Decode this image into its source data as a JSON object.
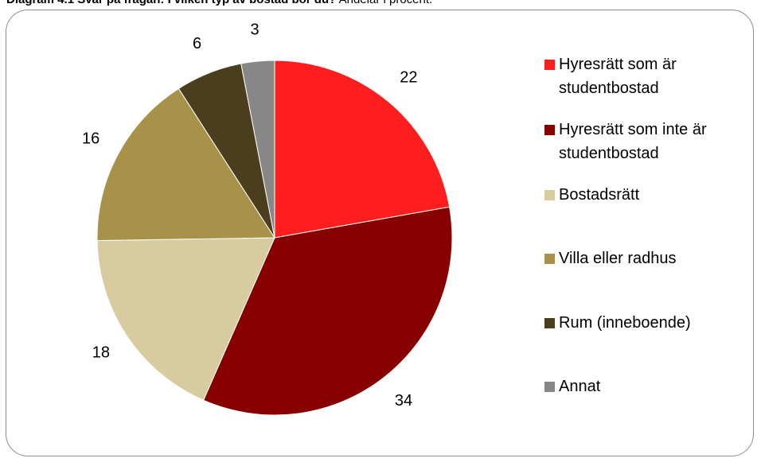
{
  "caption": {
    "bold": "Diagram 4.1 Svar på frågan: I vilken typ av bostad bor du?",
    "normal": " Andelar i procent."
  },
  "chart_data": {
    "type": "pie",
    "categories": [
      "Hyresrätt som är studentbostad",
      "Hyresrätt som inte är studentbostad",
      "Bostadsrätt",
      "Villa eller radhus",
      "Rum (inneboende)",
      "Annat"
    ],
    "values": [
      22,
      34,
      18,
      16,
      6,
      3
    ],
    "colors": [
      "#ff1e1e",
      "#860000",
      "#d8cba0",
      "#a8924a",
      "#4a3e1e",
      "#878787"
    ],
    "start_angle": "12 o'clock",
    "direction": "clockwise",
    "legend": "right",
    "data_labels": true
  }
}
